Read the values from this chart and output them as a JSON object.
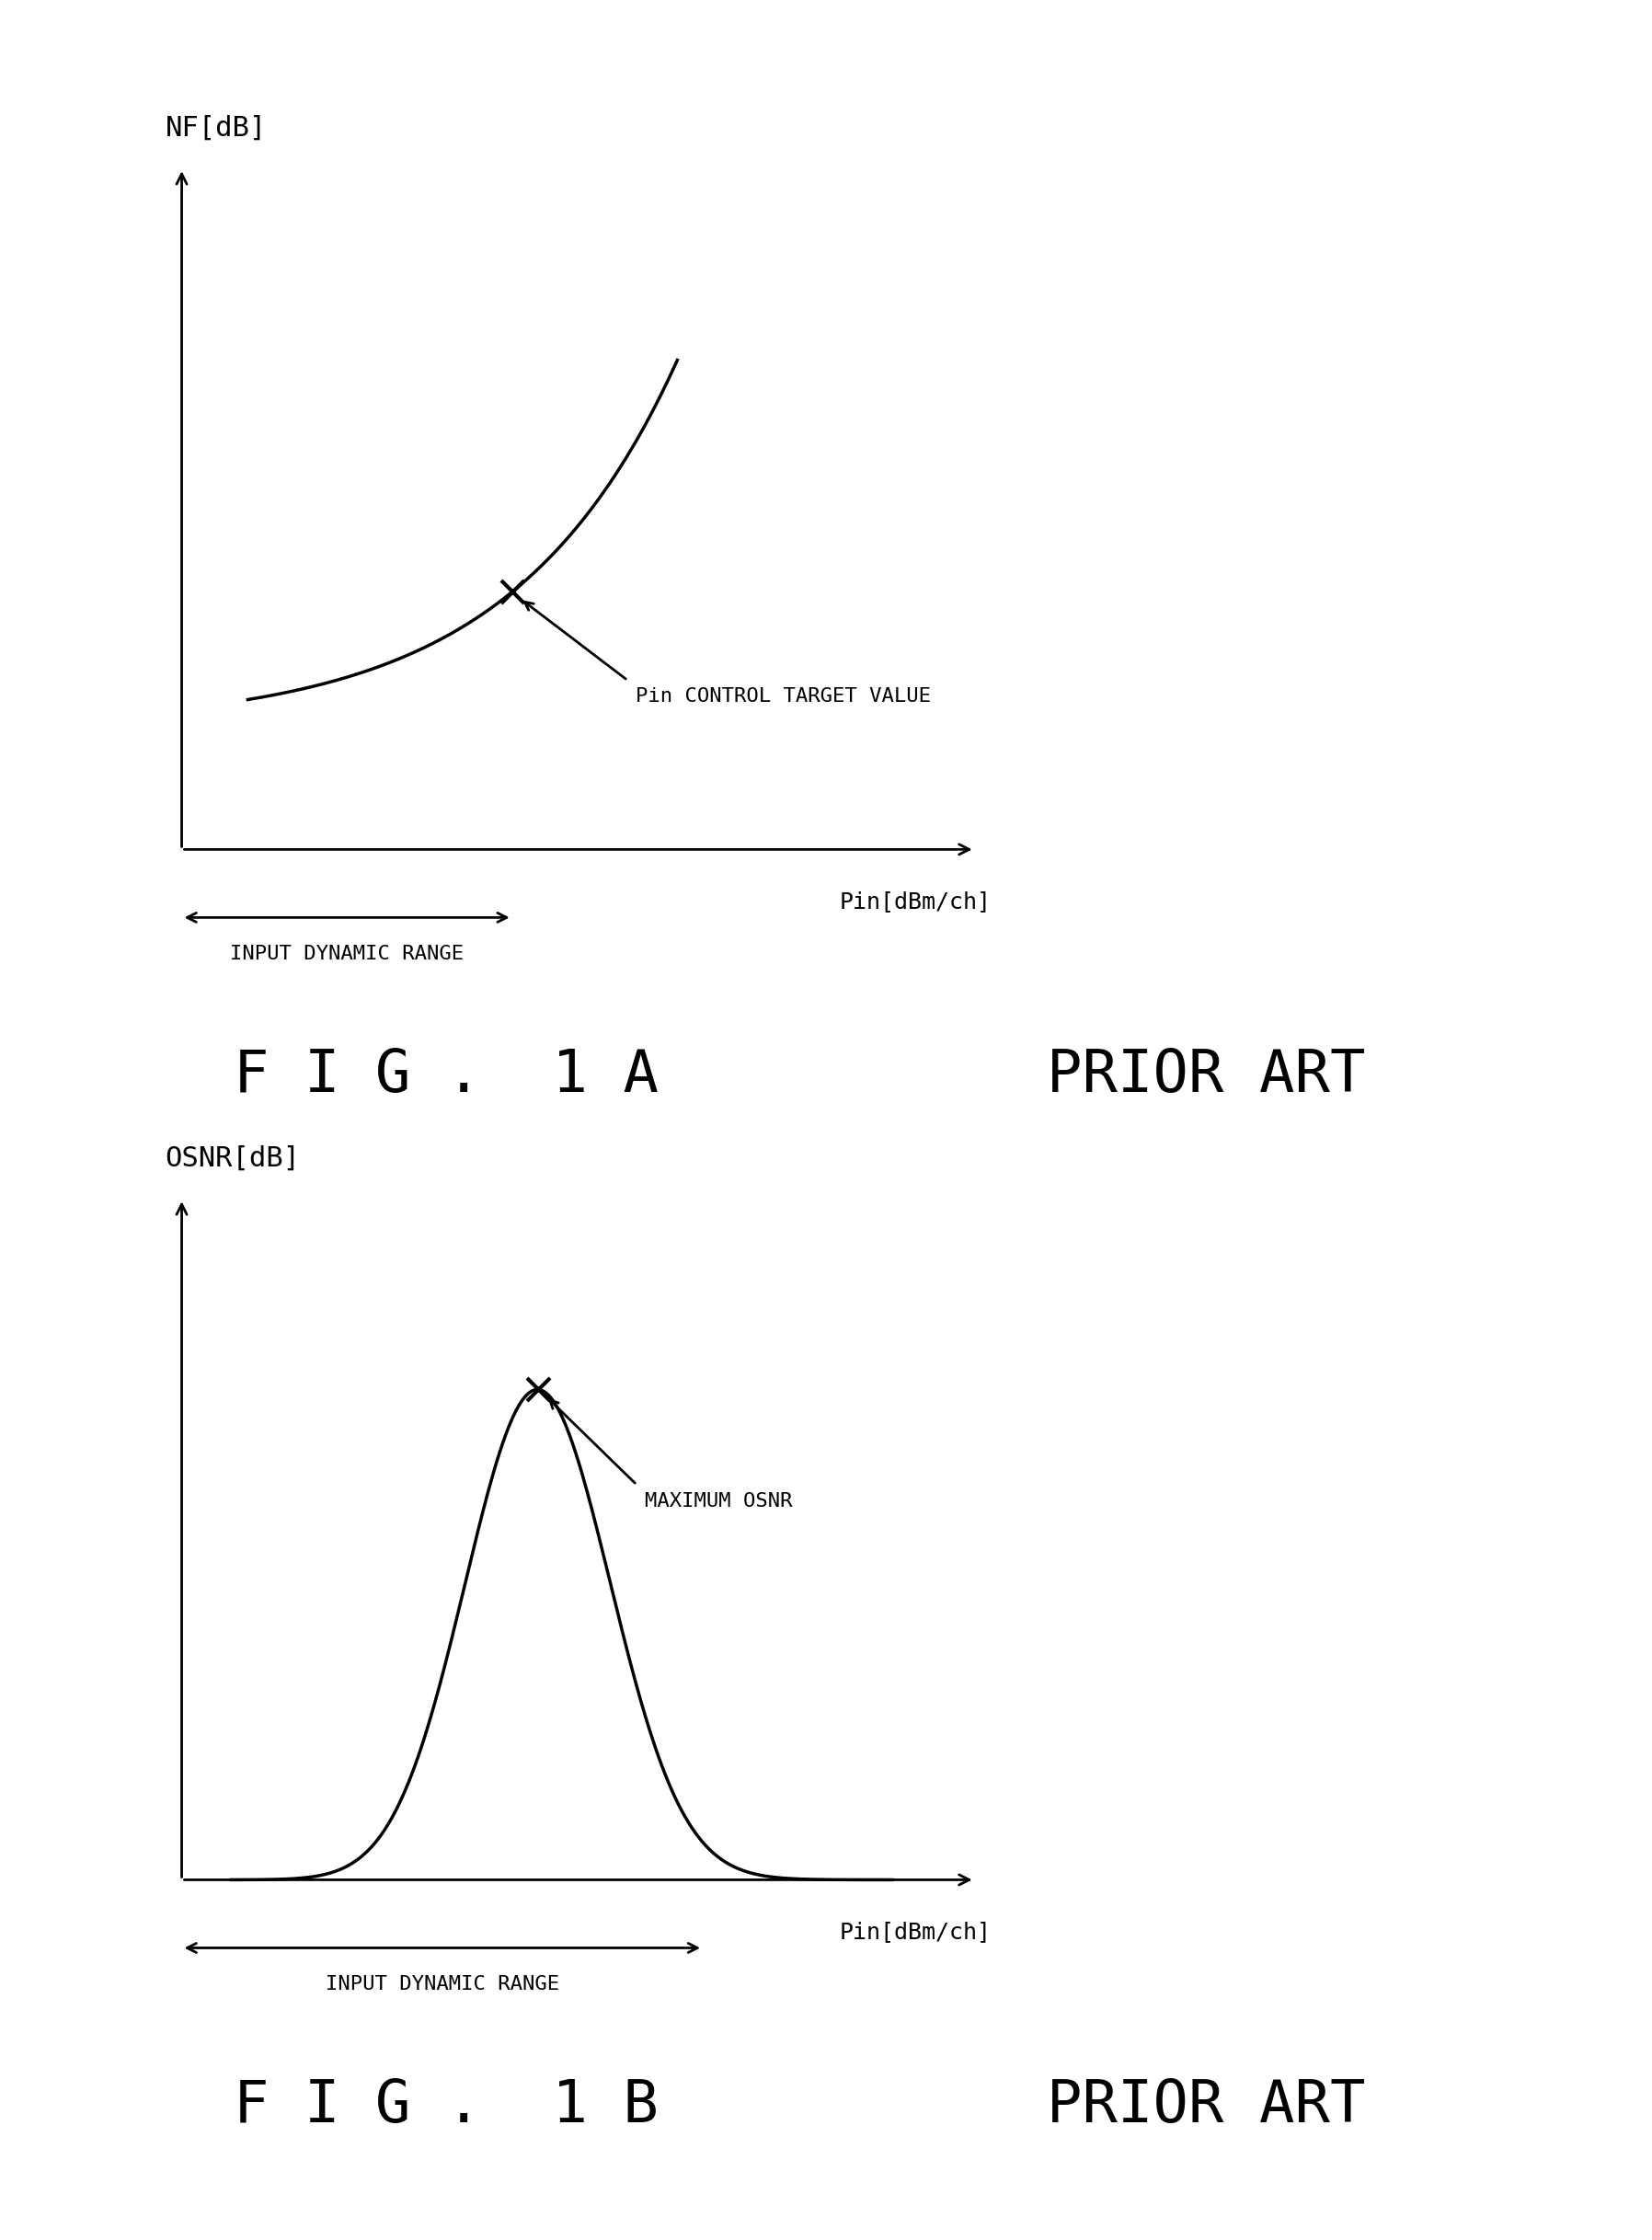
{
  "fig_width": 17.96,
  "fig_height": 24.35,
  "bg_color": "#ffffff",
  "line_color": "#000000",
  "fig1a_title": "F I G .  1 A",
  "fig1b_title": "F I G .  1 B",
  "prior_art": "PRIOR ART",
  "panel1": {
    "ylabel": "NF[dB]",
    "xlabel": "Pin[dBm/ch]",
    "dynamic_range_label": "INPUT DYNAMIC RANGE",
    "annotation_label": "Pin CONTROL TARGET VALUE"
  },
  "panel2": {
    "ylabel": "OSNR[dB]",
    "xlabel": "Pin[dBm/ch]",
    "dynamic_range_label": "INPUT DYNAMIC RANGE",
    "annotation_label": "MAXIMUM OSNR"
  },
  "label_fontsize": 22,
  "axis_label_fontsize": 18,
  "annotation_fontsize": 16,
  "dynamic_range_fontsize": 16,
  "caption_fontsize": 46,
  "prior_art_fontsize": 46
}
